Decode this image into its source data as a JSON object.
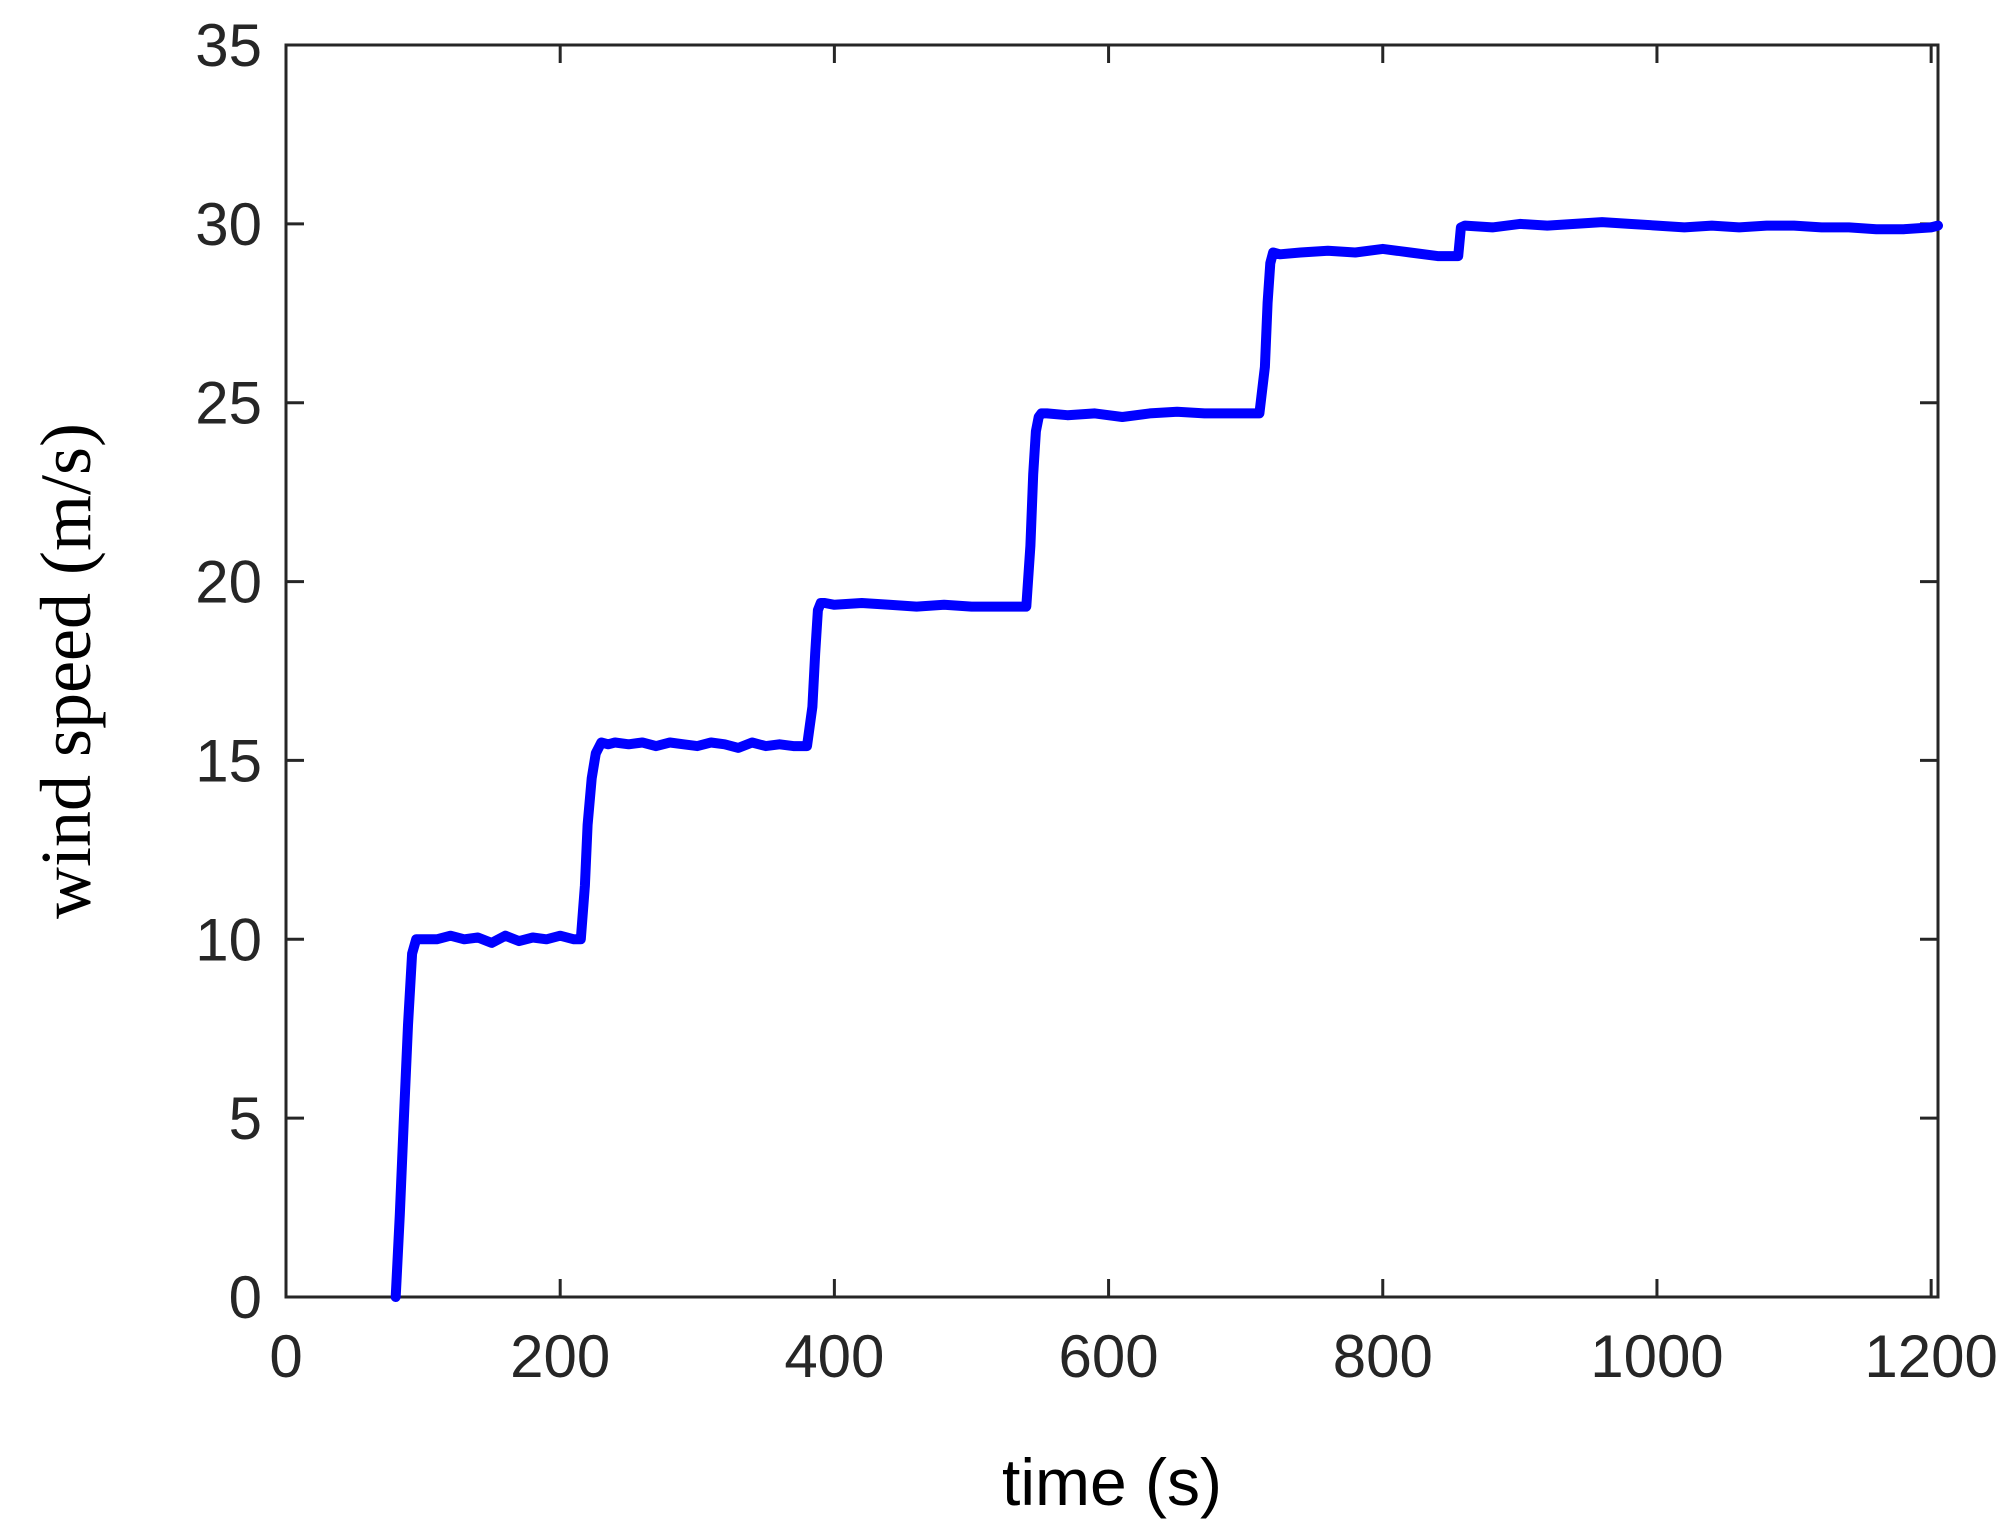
{
  "chart_data": {
    "type": "line",
    "title": "",
    "xlabel": "time (s)",
    "ylabel": "wind speed (m/s)",
    "xlim": [
      0,
      1205
    ],
    "ylim": [
      0,
      35
    ],
    "xticks": [
      0,
      200,
      400,
      600,
      800,
      1000,
      1200
    ],
    "yticks": [
      0,
      5,
      10,
      15,
      20,
      25,
      30,
      35
    ],
    "xtick_labels": [
      "0",
      "200",
      "400",
      "600",
      "800",
      "1000",
      "1200"
    ],
    "ytick_labels": [
      "0",
      "5",
      "10",
      "15",
      "20",
      "25",
      "30",
      "35"
    ],
    "grid": false,
    "legend": "none",
    "series": [
      {
        "color": "#0000FF",
        "x": [
          80,
          83,
          86,
          89,
          92,
          95,
          100,
          110,
          120,
          130,
          140,
          150,
          160,
          170,
          180,
          190,
          200,
          210,
          215,
          218,
          220,
          223,
          226,
          230,
          235,
          240,
          250,
          260,
          270,
          280,
          290,
          300,
          310,
          320,
          330,
          340,
          350,
          360,
          370,
          380,
          384,
          386,
          388,
          390,
          393,
          400,
          420,
          440,
          460,
          480,
          500,
          520,
          540,
          543,
          545,
          547,
          549,
          551,
          555,
          570,
          590,
          610,
          630,
          650,
          670,
          690,
          710,
          714,
          716,
          718,
          720,
          725,
          740,
          760,
          780,
          800,
          820,
          840,
          855,
          857,
          860,
          880,
          900,
          920,
          940,
          960,
          980,
          1000,
          1020,
          1040,
          1060,
          1080,
          1100,
          1120,
          1140,
          1160,
          1180,
          1200,
          1205
        ],
        "y": [
          0,
          2.3,
          5.0,
          7.6,
          9.6,
          10.0,
          10.0,
          10.0,
          10.1,
          10.0,
          10.05,
          9.9,
          10.1,
          9.95,
          10.05,
          10.0,
          10.1,
          10.0,
          10.0,
          11.5,
          13.2,
          14.5,
          15.2,
          15.5,
          15.45,
          15.5,
          15.45,
          15.5,
          15.4,
          15.5,
          15.45,
          15.4,
          15.5,
          15.45,
          15.35,
          15.5,
          15.4,
          15.45,
          15.4,
          15.4,
          16.5,
          18.0,
          19.2,
          19.4,
          19.4,
          19.35,
          19.4,
          19.35,
          19.3,
          19.35,
          19.3,
          19.3,
          19.3,
          21.0,
          23.0,
          24.2,
          24.6,
          24.7,
          24.7,
          24.65,
          24.7,
          24.6,
          24.7,
          24.75,
          24.7,
          24.7,
          24.7,
          26.0,
          27.8,
          28.9,
          29.2,
          29.15,
          29.2,
          29.25,
          29.2,
          29.3,
          29.2,
          29.1,
          29.1,
          29.9,
          29.95,
          29.9,
          30.0,
          29.95,
          30.0,
          30.05,
          30.0,
          29.95,
          29.9,
          29.95,
          29.9,
          29.95,
          29.95,
          29.9,
          29.9,
          29.85,
          29.85,
          29.9,
          29.95
        ]
      }
    ]
  }
}
